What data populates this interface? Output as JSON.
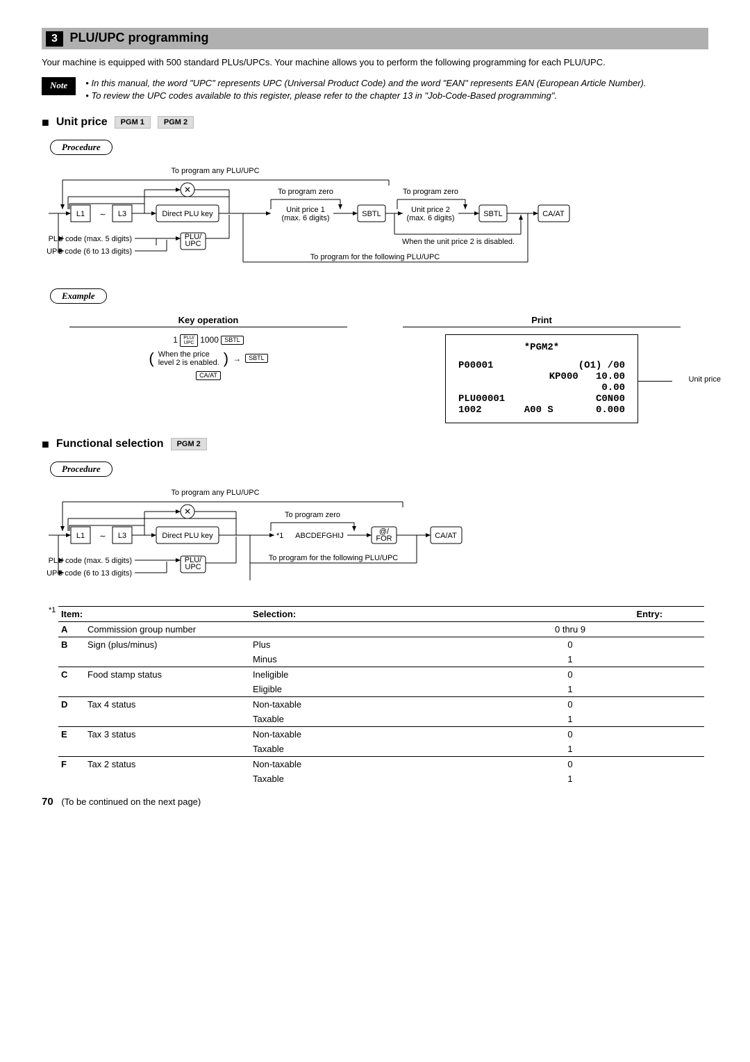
{
  "section": {
    "num": "3",
    "title": "PLU/UPC programming"
  },
  "intro": "Your machine is equipped with 500 standard PLUs/UPCs. Your machine allows you to perform the following programming for each PLU/UPC.",
  "note": {
    "label": "Note",
    "bullets": [
      "In this manual, the word \"UPC\" represents UPC (Universal Product Code) and the word \"EAN\" represents EAN (European Article Number).",
      "To review the UPC codes available to this register, please refer to the chapter 13 in \"Job-Code-Based programming\"."
    ]
  },
  "unitPrice": {
    "heading": "Unit price",
    "pgm1": "PGM 1",
    "pgm2": "PGM 2",
    "procedure": "Procedure",
    "example": "Example",
    "diagram1": {
      "topLabel": "To program any PLU/UPC",
      "L1": "L1",
      "tilde": "∼",
      "L3": "L3",
      "directPLU": "Direct PLU key",
      "pluCode": "PLU code (max. 5 digits)",
      "upcCode": "UPC code (6 to 13 digits)",
      "pluUpcKey": "PLU/\nUPC",
      "zero1": "To program zero",
      "price1a": "Unit price 1",
      "price1b": "(max. 6 digits)",
      "SBTL": "SBTL",
      "zero2": "To program zero",
      "price2a": "Unit price 2",
      "price2b": "(max. 6 digits)",
      "disabled": "When the unit price 2 is disabled.",
      "followLabel": "To program for the following PLU/UPC",
      "CAAT": "CA/AT"
    },
    "keyop": {
      "title": "Key operation",
      "paren": "When the price\nlevel 2 is enabled.",
      "seq_prefix": "1",
      "seq_key1": "PLU/\nUPC",
      "seq_mid": "1000",
      "seq_key2": "SBTL",
      "seq_key3": "SBTL",
      "seq_key4": "CA/AT"
    },
    "print": {
      "title": "Print",
      "l1": "*PGM2*",
      "l2a": "P00001",
      "l2b": "(O1) /00",
      "l3a": "KP000",
      "l3b": "10.00",
      "l4": "0.00",
      "l5a": "PLU00001",
      "l5b": "C0N00",
      "l6a": "1002",
      "l6b": "A00 S",
      "l6c": "0.000",
      "callout": "Unit price"
    }
  },
  "functional": {
    "heading": "Functional selection",
    "pgm2": "PGM 2",
    "procedure": "Procedure",
    "diagram2": {
      "topLabel": "To program any PLU/UPC",
      "L1": "L1",
      "tilde": "∼",
      "L3": "L3",
      "directPLU": "Direct PLU key",
      "pluCode": "PLU code (max. 5 digits)",
      "upcCode": "UPC code (6 to 13 digits)",
      "pluUpcKey": "PLU/\nUPC",
      "zero": "To program zero",
      "abc": "ABCDEFGHIJ",
      "star": "*1",
      "atFor": "@/\nFOR",
      "CAAT": "CA/AT",
      "followLabel": "To program for the following PLU/UPC"
    },
    "tableHead": {
      "star": "*1",
      "item": "Item:",
      "selection": "Selection:",
      "entry": "Entry:"
    },
    "rows": [
      {
        "l": "A",
        "item": "Commission group number",
        "sel": "",
        "entry": "0 thru 9",
        "div": true
      },
      {
        "l": "B",
        "item": "Sign (plus/minus)",
        "sel": "Plus",
        "entry": "0",
        "div": false
      },
      {
        "l": "",
        "item": "",
        "sel": "Minus",
        "entry": "1",
        "div": true
      },
      {
        "l": "C",
        "item": "Food stamp status",
        "sel": "Ineligible",
        "entry": "0",
        "div": false
      },
      {
        "l": "",
        "item": "",
        "sel": "Eligible",
        "entry": "1",
        "div": true
      },
      {
        "l": "D",
        "item": "Tax 4 status",
        "sel": "Non-taxable",
        "entry": "0",
        "div": false
      },
      {
        "l": "",
        "item": "",
        "sel": "Taxable",
        "entry": "1",
        "div": true
      },
      {
        "l": "E",
        "item": "Tax 3 status",
        "sel": "Non-taxable",
        "entry": "0",
        "div": false
      },
      {
        "l": "",
        "item": "",
        "sel": "Taxable",
        "entry": "1",
        "div": true
      },
      {
        "l": "F",
        "item": "Tax 2 status",
        "sel": "Non-taxable",
        "entry": "0",
        "div": false
      },
      {
        "l": "",
        "item": "",
        "sel": "Taxable",
        "entry": "1",
        "div": false
      }
    ]
  },
  "pageNum": "70",
  "continued": "(To be continued on the next page)"
}
